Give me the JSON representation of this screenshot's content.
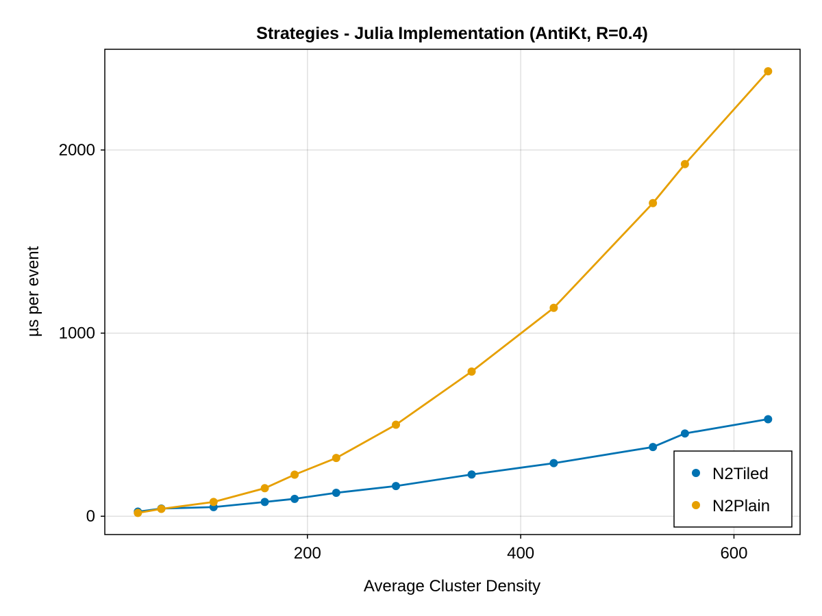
{
  "chart_data": {
    "type": "line",
    "title": "Strategies - Julia Implementation (AntiKt, R=0.4)",
    "xlabel": "Average Cluster Density",
    "ylabel": "µs per event",
    "xlim": [
      10,
      662
    ],
    "ylim": [
      -100,
      2550
    ],
    "xticks": [
      200,
      400,
      600
    ],
    "yticks": [
      0,
      1000,
      2000
    ],
    "grid": true,
    "legend_position": "bottom-right",
    "series": [
      {
        "name": "N2Tiled",
        "color": "#0072b2",
        "x": [
          41,
          63,
          112,
          160,
          188,
          227,
          283,
          354,
          431,
          524,
          554,
          632
        ],
        "y": [
          25,
          42,
          50,
          78,
          95,
          128,
          165,
          228,
          290,
          378,
          452,
          530
        ]
      },
      {
        "name": "N2Plain",
        "color": "#e69f00",
        "x": [
          41,
          63,
          112,
          160,
          188,
          227,
          283,
          354,
          431,
          524,
          554,
          632
        ],
        "y": [
          18,
          40,
          78,
          153,
          227,
          318,
          500,
          790,
          1138,
          1710,
          1923,
          2430
        ]
      }
    ]
  }
}
